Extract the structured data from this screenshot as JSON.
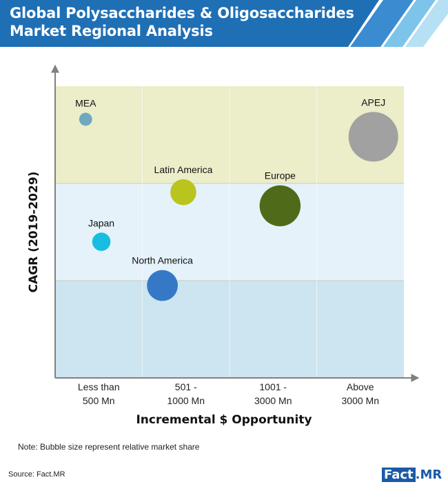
{
  "header": {
    "title_line1": "Global Polysaccharides & Oligosaccharides",
    "title_line2": "Market Regional Analysis"
  },
  "chart_data": {
    "type": "scatter",
    "title": "Global Polysaccharides & Oligosaccharides Market Regional Analysis",
    "xlabel": "Incremental $ Opportunity",
    "ylabel": "CAGR (2019-2029)",
    "categories": [
      [
        "Less than",
        "500 Mn"
      ],
      [
        "501 -",
        "1000 Mn"
      ],
      [
        "1001 -",
        "3000 Mn"
      ],
      [
        "Above",
        "3000 Mn"
      ]
    ],
    "bands": [
      "high",
      "medium",
      "low"
    ],
    "points": [
      {
        "label": "MEA",
        "x": 0.35,
        "y": 2.66,
        "share": 0.03,
        "color": "#6fa8bf"
      },
      {
        "label": "Latin America",
        "x": 1.47,
        "y": 1.91,
        "share": 0.12,
        "color": "#b9c41f"
      },
      {
        "label": "Europe",
        "x": 2.58,
        "y": 1.77,
        "share": 0.3,
        "color": "#4f6b1a"
      },
      {
        "label": "APEJ",
        "x": 3.65,
        "y": 2.48,
        "share": 0.44,
        "color": "#a1a1a1"
      },
      {
        "label": "Japan",
        "x": 0.53,
        "y": 1.4,
        "share": 0.06,
        "color": "#18bde1"
      },
      {
        "label": "North America",
        "x": 1.23,
        "y": 0.95,
        "share": 0.17,
        "color": "#3579c6"
      }
    ],
    "xlim": [
      0,
      4
    ],
    "ylim": [
      0,
      3
    ],
    "grid": false,
    "legend": "none"
  },
  "colors": {
    "header": "#1f6fb5",
    "band_high": "#ecedc9",
    "band_medium": "#e5f2f9",
    "band_low": "#cde5f0",
    "axis": "#808080"
  },
  "footer": {
    "note": "Note: Bubble size represent relative market share",
    "source": "Source: Fact.MR",
    "logo_part1": "Fact",
    "logo_dot": ".",
    "logo_part2": "MR"
  }
}
